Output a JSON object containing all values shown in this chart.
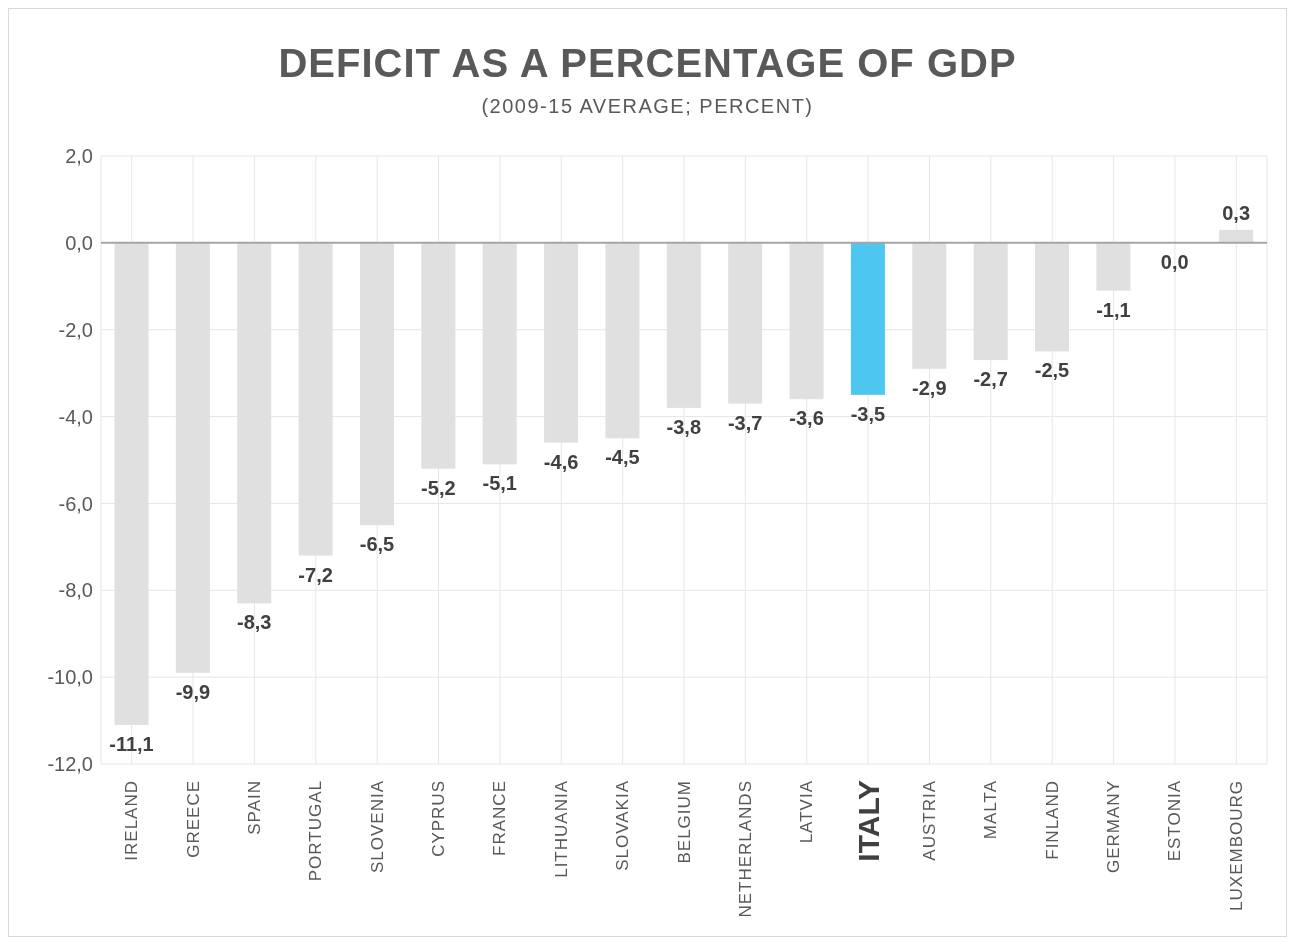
{
  "chart_data": {
    "type": "bar",
    "title": "DEFICIT AS A PERCENTAGE OF GDP",
    "subtitle": "(2009-15 AVERAGE; PERCENT)",
    "categories": [
      "IRELAND",
      "GREECE",
      "SPAIN",
      "PORTUGAL",
      "SLOVENIA",
      "CYPRUS",
      "FRANCE",
      "LITHUANIA",
      "SLOVAKIA",
      "BELGIUM",
      "NETHERLANDS",
      "LATVIA",
      "ITALY",
      "AUSTRIA",
      "MALTA",
      "FINLAND",
      "GERMANY",
      "ESTONIA",
      "LUXEMBOURG"
    ],
    "values": [
      -11.1,
      -9.9,
      -8.3,
      -7.2,
      -6.5,
      -5.2,
      -5.1,
      -4.6,
      -4.5,
      -3.8,
      -3.7,
      -3.6,
      -3.5,
      -2.9,
      -2.7,
      -2.5,
      -1.1,
      0.0,
      0.3
    ],
    "value_labels": [
      "-11,1",
      "-9,9",
      "-8,3",
      "-7,2",
      "-6,5",
      "-5,2",
      "-5,1",
      "-4,6",
      "-4,5",
      "-3,8",
      "-3,7",
      "-3,6",
      "-3,5",
      "-2,9",
      "-2,7",
      "-2,5",
      "-1,1",
      "0,0",
      "0,3"
    ],
    "colors": [
      "#e0e0e0",
      "#e0e0e0",
      "#e0e0e0",
      "#e0e0e0",
      "#e0e0e0",
      "#e0e0e0",
      "#e0e0e0",
      "#e0e0e0",
      "#e0e0e0",
      "#e0e0e0",
      "#e0e0e0",
      "#e0e0e0",
      "#4dc6f0",
      "#e0e0e0",
      "#e0e0e0",
      "#e0e0e0",
      "#e0e0e0",
      "#e0e0e0",
      "#e0e0e0"
    ],
    "ylim": [
      -12,
      2
    ],
    "yticks": [
      {
        "value": -12,
        "label": "-12,0"
      },
      {
        "value": -10,
        "label": "-10,0"
      },
      {
        "value": -8,
        "label": "-8,0"
      },
      {
        "value": -6,
        "label": "-6,0"
      },
      {
        "value": -4,
        "label": "-4,0"
      },
      {
        "value": -2,
        "label": "-2,0"
      },
      {
        "value": 0,
        "label": "0,0"
      },
      {
        "value": 2,
        "label": "2,0"
      }
    ],
    "grid": true
  }
}
